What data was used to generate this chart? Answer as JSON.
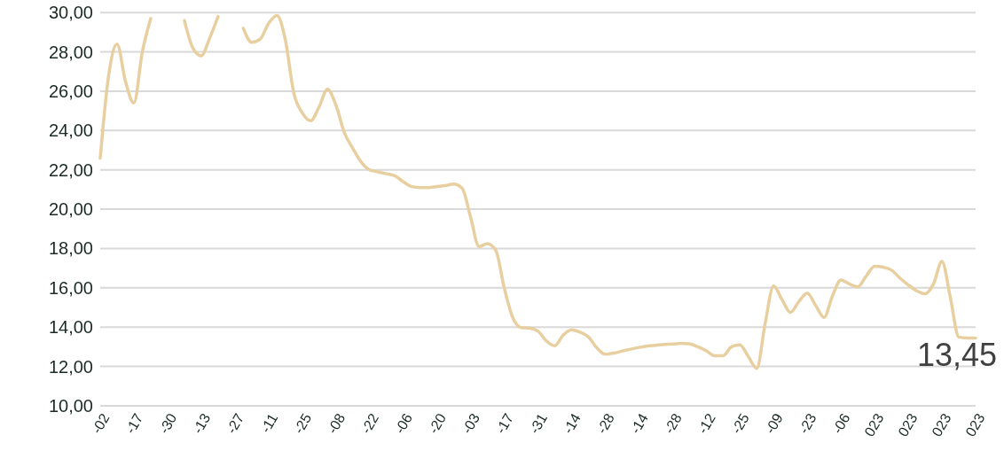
{
  "chart_data": {
    "type": "line",
    "categories": [
      "-02",
      null,
      null,
      null,
      "-17",
      null,
      null,
      null,
      "-30",
      null,
      null,
      null,
      "-13",
      null,
      null,
      null,
      "-27",
      null,
      null,
      null,
      "-11",
      null,
      null,
      null,
      "-25",
      null,
      null,
      null,
      "-08",
      null,
      null,
      null,
      "-22",
      null,
      null,
      null,
      "-06",
      null,
      null,
      null,
      "-20",
      null,
      null,
      null,
      "-03",
      null,
      null,
      null,
      "-17",
      null,
      null,
      null,
      "-31",
      null,
      null,
      null,
      "-14",
      null,
      null,
      null,
      "-28",
      null,
      null,
      null,
      "-14",
      null,
      null,
      null,
      "-28",
      null,
      null,
      null,
      "-12",
      null,
      null,
      null,
      "-25",
      null,
      null,
      null,
      "-09",
      null,
      null,
      null,
      "-23",
      null,
      null,
      null,
      "-06",
      null,
      null,
      null,
      "023",
      null,
      null,
      null,
      "023",
      null,
      null,
      null,
      "023",
      null,
      null,
      null,
      "023"
    ],
    "ylim": [
      10,
      30.1
    ],
    "yticks": [
      {
        "value": 10,
        "label": "10,00"
      },
      {
        "value": 12,
        "label": "12,00"
      },
      {
        "value": 14,
        "label": "14,00"
      },
      {
        "value": 16,
        "label": "16,00"
      },
      {
        "value": 18,
        "label": "18,00"
      },
      {
        "value": 20,
        "label": "20,00"
      },
      {
        "value": 22,
        "label": "22,00"
      },
      {
        "value": 24,
        "label": "24,00"
      },
      {
        "value": 26,
        "label": "26,00"
      },
      {
        "value": 28,
        "label": "28,00"
      },
      {
        "value": 30,
        "label": "30,00"
      }
    ],
    "grid": "y",
    "marker": "none",
    "line_style": "solid",
    "series": [
      {
        "color": "#e8cfa0",
        "values": [
          22.6,
          26.8,
          28.4,
          26.5,
          25.4,
          28.0,
          29.7,
          null,
          null,
          null,
          29.6,
          28.2,
          27.8,
          28.7,
          29.8,
          null,
          null,
          29.2,
          28.49,
          28.65,
          29.45,
          29.85,
          28.6,
          25.9,
          24.9,
          24.5,
          25.2,
          26.1,
          25.3,
          23.9,
          23.1,
          22.4,
          22.0,
          21.9,
          21.8,
          21.7,
          21.4,
          21.15,
          21.1,
          21.1,
          21.15,
          21.2,
          21.28,
          21.06,
          19.6,
          18.1,
          18.25,
          17.9,
          16.0,
          14.5,
          13.98,
          13.95,
          13.8,
          13.3,
          13.05,
          13.6,
          13.87,
          13.75,
          13.5,
          12.95,
          12.62,
          12.68,
          12.78,
          12.88,
          12.97,
          13.04,
          13.08,
          13.12,
          13.14,
          13.18,
          13.15,
          13.0,
          12.8,
          12.55,
          12.55,
          13.0,
          13.1,
          12.5,
          11.9,
          14.2,
          16.1,
          15.4,
          14.75,
          15.3,
          15.74,
          15.1,
          14.5,
          15.6,
          16.4,
          16.2,
          16.05,
          16.6,
          17.1,
          17.05,
          16.9,
          16.5,
          16.15,
          15.85,
          15.7,
          16.2,
          17.35,
          15.5,
          13.5,
          13.45,
          13.45
        ]
      }
    ],
    "annotations": [
      {
        "text": "13,45",
        "y": 13.45
      }
    ]
  }
}
